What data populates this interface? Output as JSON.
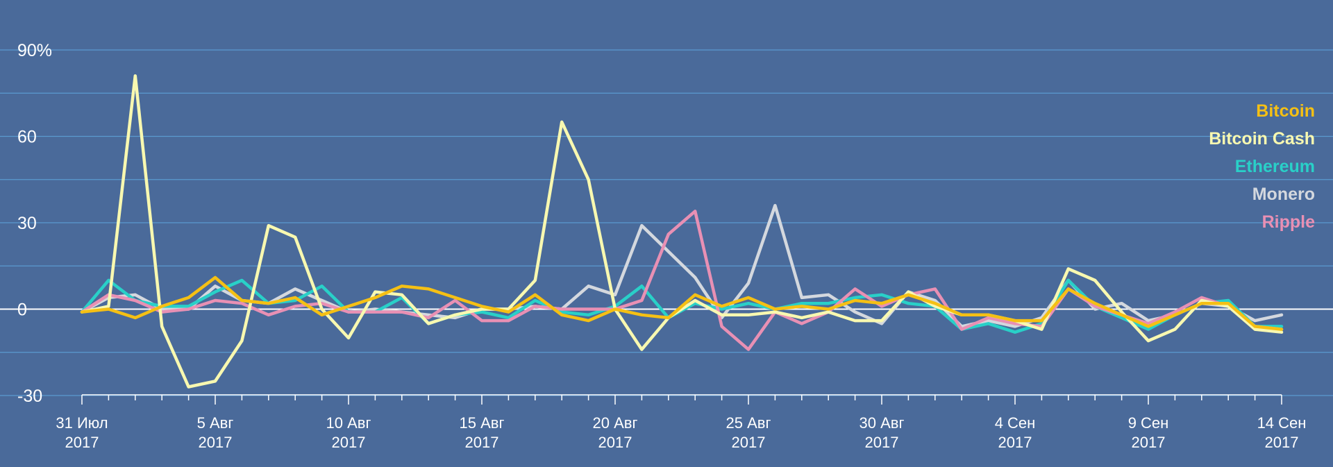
{
  "chart_data": {
    "type": "line",
    "title": "",
    "xlabel": "",
    "ylabel": "",
    "ylim": [
      -30,
      90
    ],
    "y_ticks": [
      {
        "value": 90,
        "label": "90%"
      },
      {
        "value": 60,
        "label": "60"
      },
      {
        "value": 30,
        "label": "30"
      },
      {
        "value": 0,
        "label": "0"
      },
      {
        "value": -30,
        "label": "-30"
      }
    ],
    "grid": true,
    "legend_position": "right",
    "x_tick_labels": [
      {
        "index": 0,
        "line1": "31 Июл",
        "line2": "2017"
      },
      {
        "index": 5,
        "line1": "5 Авг",
        "line2": "2017"
      },
      {
        "index": 10,
        "line1": "10 Авг",
        "line2": "2017"
      },
      {
        "index": 15,
        "line1": "15 Авг",
        "line2": "2017"
      },
      {
        "index": 20,
        "line1": "20 Авг",
        "line2": "2017"
      },
      {
        "index": 25,
        "line1": "25 Авг",
        "line2": "2017"
      },
      {
        "index": 30,
        "line1": "30 Авг",
        "line2": "2017"
      },
      {
        "index": 35,
        "line1": "4 Сен",
        "line2": "2017"
      },
      {
        "index": 40,
        "line1": "9 Сен",
        "line2": "2017"
      },
      {
        "index": 45,
        "line1": "14 Сен",
        "line2": "2017"
      }
    ],
    "x": [
      "2017-07-31",
      "2017-08-01",
      "2017-08-02",
      "2017-08-03",
      "2017-08-04",
      "2017-08-05",
      "2017-08-06",
      "2017-08-07",
      "2017-08-08",
      "2017-08-09",
      "2017-08-10",
      "2017-08-11",
      "2017-08-12",
      "2017-08-13",
      "2017-08-14",
      "2017-08-15",
      "2017-08-16",
      "2017-08-17",
      "2017-08-18",
      "2017-08-19",
      "2017-08-20",
      "2017-08-21",
      "2017-08-22",
      "2017-08-23",
      "2017-08-24",
      "2017-08-25",
      "2017-08-26",
      "2017-08-27",
      "2017-08-28",
      "2017-08-29",
      "2017-08-30",
      "2017-08-31",
      "2017-09-01",
      "2017-09-02",
      "2017-09-03",
      "2017-09-04",
      "2017-09-05",
      "2017-09-06",
      "2017-09-07",
      "2017-09-08",
      "2017-09-09",
      "2017-09-10",
      "2017-09-11",
      "2017-09-12",
      "2017-09-13",
      "2017-09-14"
    ],
    "series": [
      {
        "name": "Monero",
        "color": "#d4d8de",
        "values": [
          -1,
          4,
          5,
          0,
          0,
          8,
          3,
          2,
          7,
          3,
          -1,
          0,
          -1,
          -2,
          -3,
          0,
          0,
          1,
          0,
          8,
          5,
          29,
          20,
          11,
          -3,
          9,
          36,
          4,
          5,
          -1,
          -5,
          6,
          3,
          -6,
          -4,
          -6,
          -3,
          10,
          0,
          2,
          -4,
          -2,
          2,
          1,
          -4,
          -2
        ]
      },
      {
        "name": "Ethereum",
        "color": "#29d0c8",
        "values": [
          -1,
          10,
          3,
          1,
          1,
          6,
          10,
          2,
          3,
          8,
          -1,
          -1,
          4,
          -5,
          -2,
          -1,
          -3,
          3,
          -1,
          -2,
          1,
          8,
          -3,
          2,
          0,
          2,
          0,
          2,
          2,
          4,
          5,
          2,
          1,
          -7,
          -5,
          -8,
          -5,
          10,
          1,
          -3,
          -7,
          -2,
          2,
          3,
          -6,
          -6
        ]
      },
      {
        "name": "Ripple",
        "color": "#e890b4",
        "values": [
          -1,
          5,
          3,
          -1,
          0,
          3,
          2,
          -2,
          1,
          2,
          -1,
          -1,
          -1,
          -3,
          3,
          -4,
          -4,
          1,
          0,
          0,
          0,
          3,
          26,
          34,
          -6,
          -14,
          -1,
          -5,
          -1,
          7,
          1,
          5,
          7,
          -7,
          -3,
          -5,
          -6,
          7,
          1,
          -2,
          -5,
          -1,
          4,
          1,
          -6,
          -7
        ]
      },
      {
        "name": "Bitcoin Cash",
        "color": "#f8f8b0",
        "values": [
          -1,
          1,
          81,
          -6,
          -27,
          -25,
          -11,
          29,
          25,
          0,
          -10,
          6,
          5,
          -5,
          -2,
          0,
          0,
          10,
          65,
          45,
          0,
          -14,
          -3,
          3,
          -2,
          -2,
          -1,
          -3,
          -1,
          -4,
          -4,
          6,
          1,
          -2,
          -2,
          -4,
          -7,
          14,
          10,
          -1,
          -11,
          -7,
          3,
          1,
          -7,
          -8
        ]
      },
      {
        "name": "Bitcoin",
        "color": "#f5c014",
        "values": [
          -1,
          0,
          -3,
          1,
          4,
          11,
          3,
          2,
          4,
          -2,
          1,
          4,
          8,
          7,
          4,
          1,
          -1,
          5,
          -2,
          -4,
          0,
          -2,
          -3,
          5,
          1,
          4,
          0,
          1,
          0,
          3,
          2,
          5,
          2,
          -2,
          -2,
          -4,
          -4,
          7,
          2,
          -2,
          -6,
          -2,
          2,
          2,
          -6,
          -7
        ]
      }
    ],
    "legend_order": [
      "Bitcoin",
      "Bitcoin Cash",
      "Ethereum",
      "Monero",
      "Ripple"
    ]
  }
}
